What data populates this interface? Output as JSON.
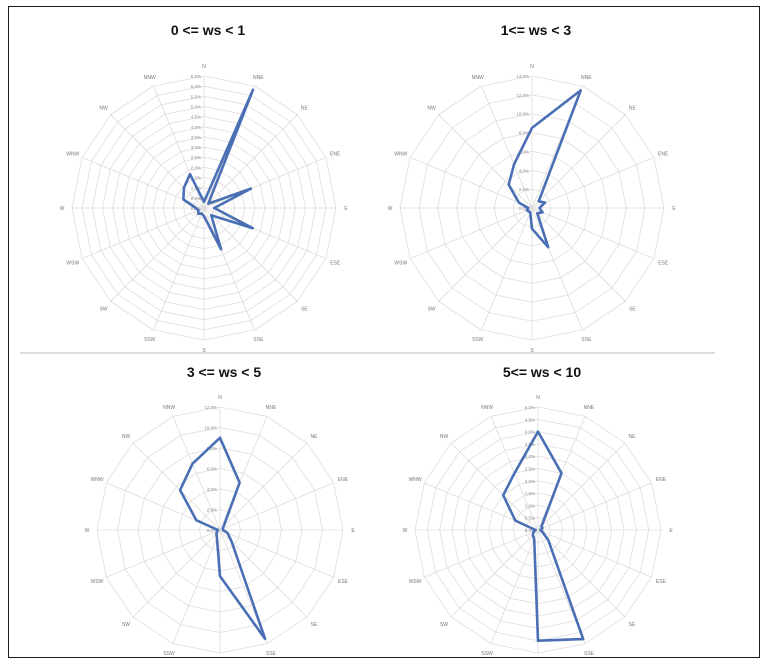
{
  "colors": {
    "series": "#4a6fb4",
    "grid": "#dedede",
    "label": "#777777"
  },
  "chart_data": [
    {
      "type": "radar",
      "title": "0 <= ws < 1",
      "directions": [
        "N",
        "NNE",
        "NE",
        "ENE",
        "E",
        "ESE",
        "SE",
        "SSE",
        "S",
        "SSW",
        "SW",
        "WSW",
        "W",
        "WNW",
        "NW",
        "NNW"
      ],
      "direction_labels": [
        "N",
        "NNE",
        "NE",
        "ENE",
        "E",
        "ESE",
        "SE",
        "SSE",
        "S",
        "SSW",
        "SW",
        "WSW",
        "W",
        "WNW",
        "NW",
        "NNW"
      ],
      "tick_labels": [
        "0.0%",
        "0.5%",
        "1.0%",
        "1.5%",
        "2.0%",
        "2.5%",
        "3.0%",
        "3.5%",
        "4.0%",
        "4.5%",
        "5.0%",
        "5.5%",
        "6.0%",
        "6.5%"
      ],
      "rmax": 6.5,
      "values": [
        0.3,
        6.3,
        0.3,
        2.5,
        0.5,
        2.6,
        0.5,
        2.2,
        0.4,
        0.3,
        0.4,
        0.3,
        0.4,
        1.1,
        1.4,
        1.8
      ]
    },
    {
      "type": "radar",
      "title": "1<= ws < 3",
      "directions": [
        "N",
        "NNE",
        "NE",
        "ENE",
        "E",
        "ESE",
        "SE",
        "SSE",
        "S",
        "SSW",
        "SW",
        "WSW",
        "W",
        "WNW",
        "NW",
        "NNW"
      ],
      "direction_labels": [
        "N",
        "NNE",
        "NE",
        "ENE",
        "E",
        "ESE",
        "SE",
        "SSE",
        "S",
        "SSW",
        "SW",
        "WSW",
        "W",
        "WNW",
        "NW",
        "NNW"
      ],
      "tick_labels": [
        "0.0%",
        "2.0%",
        "4.0%",
        "6.0%",
        "8.0%",
        "10.0%",
        "12.0%",
        "14.0%"
      ],
      "rmax": 14,
      "values": [
        8.5,
        13.5,
        1.0,
        1.5,
        0.8,
        1.2,
        0.8,
        4.5,
        2.2,
        0.5,
        0.5,
        0.6,
        0.4,
        1.5,
        3.5,
        5.0
      ]
    },
    {
      "type": "radar",
      "title": "3 <= ws < 5",
      "directions": [
        "N",
        "NNE",
        "NE",
        "ENE",
        "E",
        "ESE",
        "SE",
        "SSE",
        "S",
        "SSW",
        "SW",
        "WSW",
        "W",
        "WNW",
        "NW",
        "NNW"
      ],
      "direction_labels": [
        "N",
        "NNE",
        "NE",
        "ENE",
        "E",
        "ESE",
        "SE",
        "SSE",
        "S",
        "SSW",
        "SW",
        "WSW",
        "W",
        "WNW",
        "NW",
        "NNW"
      ],
      "tick_labels": [
        "0.0%",
        "2.0%",
        "4.0%",
        "6.0%",
        "8.0%",
        "10.0%",
        "12.0%"
      ],
      "rmax": 12,
      "values": [
        9.0,
        5.0,
        0.5,
        0.3,
        0.3,
        0.8,
        1.6,
        11.5,
        4.5,
        0.8,
        0.5,
        0.3,
        0.2,
        2.5,
        5.5,
        7.0
      ]
    },
    {
      "type": "radar",
      "title": "5<= ws < 10",
      "directions": [
        "N",
        "NNE",
        "NE",
        "ENE",
        "E",
        "ESE",
        "SE",
        "SSE",
        "S",
        "SSW",
        "SW",
        "WSW",
        "W",
        "WNW",
        "NW",
        "NNW"
      ],
      "direction_labels": [
        "N",
        "NNE",
        "NE",
        "ENE",
        "E",
        "ESE",
        "SE",
        "SSE",
        "S",
        "SSW",
        "SW",
        "WSW",
        "W",
        "WNW",
        "NW",
        "NNW"
      ],
      "tick_labels": [
        "0.0%",
        "0.5%",
        "1.0%",
        "1.5%",
        "2.0%",
        "2.5%",
        "3.0%",
        "3.5%",
        "4.0%",
        "4.5%",
        "5.0%"
      ],
      "rmax": 5.0,
      "values": [
        4.0,
        2.5,
        0.2,
        0.2,
        0.1,
        0.2,
        0.6,
        4.8,
        4.5,
        0.4,
        0.3,
        0.2,
        0.1,
        1.0,
        2.0,
        2.5
      ]
    }
  ]
}
